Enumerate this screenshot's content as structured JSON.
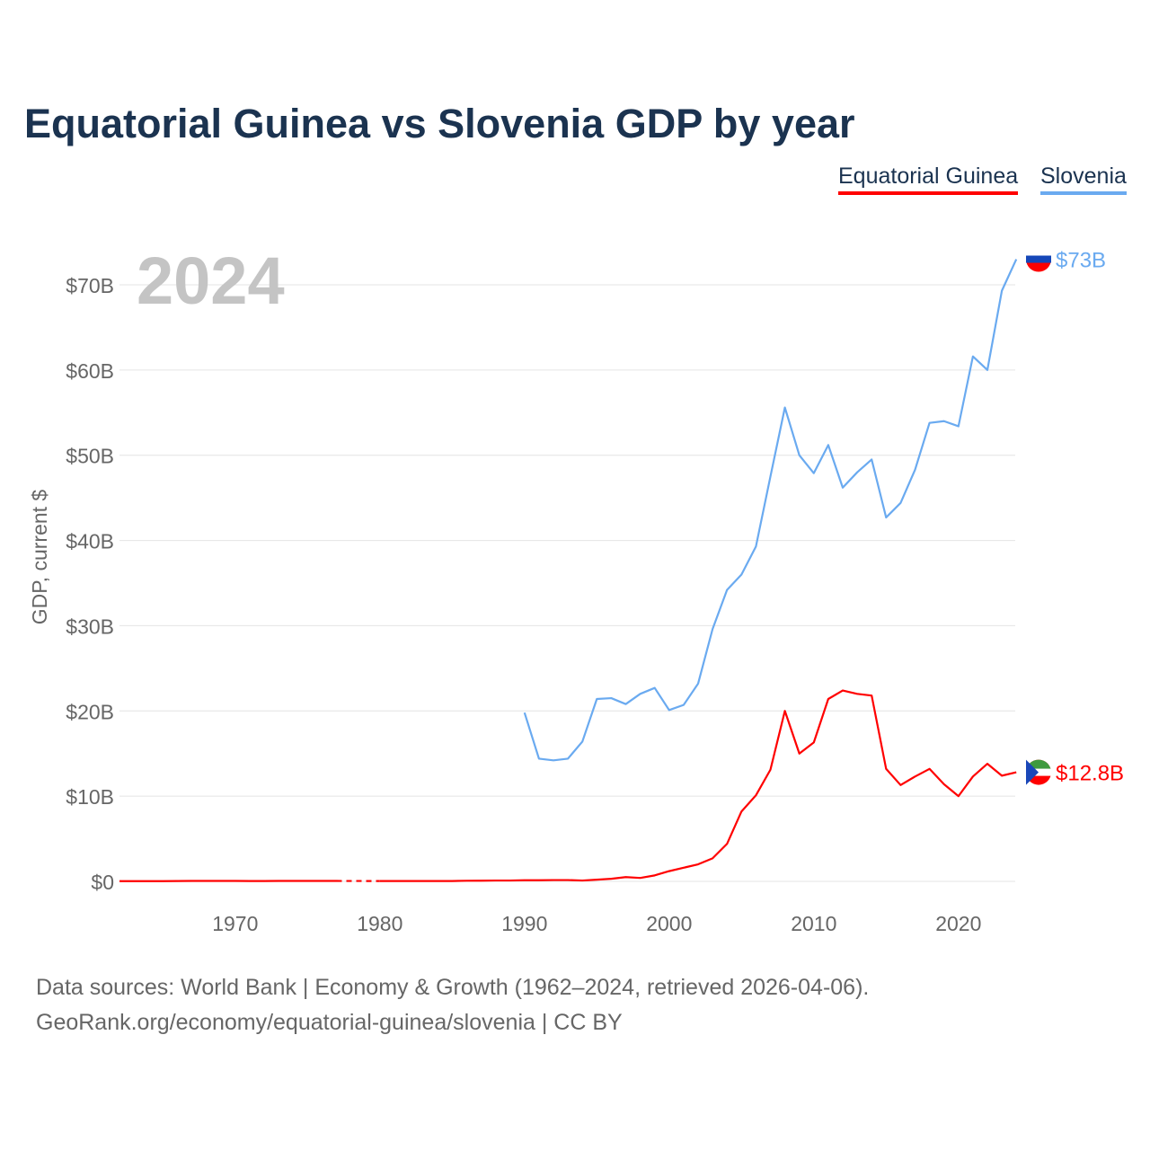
{
  "title": "Equatorial Guinea vs Slovenia GDP by year",
  "legend": [
    "Equatorial Guinea",
    "Slovenia"
  ],
  "source_line1": "Data sources: World Bank | Economy & Growth (1962–2024, retrieved 2026-04-06).",
  "source_line2": "GeoRank.org/economy/equatorial-guinea/slovenia | CC BY",
  "chart_data": {
    "type": "line",
    "title": "Equatorial Guinea vs Slovenia GDP by year",
    "year_label": "2024",
    "ylabel": "GDP, current $",
    "xlim": [
      1962,
      2024
    ],
    "ylim": [
      0,
      75
    ],
    "x_ticks": [
      1970,
      1980,
      1990,
      2000,
      2010,
      2020
    ],
    "y_ticks": [
      0,
      10,
      20,
      30,
      40,
      50,
      60,
      70
    ],
    "y_tick_labels": [
      "$0",
      "$10B",
      "$20B",
      "$30B",
      "$40B",
      "$50B",
      "$60B",
      "$70B"
    ],
    "grid": true,
    "legend_position": "top-right",
    "series": [
      {
        "name": "Equatorial Guinea",
        "color": "#ff0000",
        "end_label": "$12.8B",
        "start": 1962,
        "values": [
          0.03,
          0.03,
          0.03,
          0.03,
          0.04,
          0.05,
          0.05,
          0.05,
          0.05,
          0.04,
          0.04,
          0.05,
          0.05,
          0.05,
          0.05,
          0.05,
          null,
          null,
          0.04,
          0.04,
          0.04,
          0.04,
          0.04,
          0.04,
          0.07,
          0.08,
          0.1,
          0.1,
          0.13,
          0.13,
          0.15,
          0.15,
          0.1,
          0.2,
          0.3,
          0.5,
          0.4,
          0.7,
          1.2,
          1.6,
          2.0,
          2.7,
          4.4,
          8.2,
          10.1,
          13.1,
          20.0,
          15.0,
          16.3,
          21.4,
          22.4,
          22.0,
          21.8,
          13.2,
          11.3,
          12.3,
          13.2,
          11.4,
          10.0,
          12.3,
          13.8,
          12.4,
          12.8
        ]
      },
      {
        "name": "Slovenia",
        "color": "#6aaaf0",
        "end_label": "$73B",
        "start": 1990,
        "values": [
          19.8,
          14.4,
          14.2,
          14.4,
          16.4,
          21.4,
          21.5,
          20.8,
          22.0,
          22.7,
          20.1,
          20.7,
          23.2,
          29.6,
          34.2,
          36.0,
          39.3,
          47.5,
          55.6,
          50.0,
          47.9,
          51.2,
          46.2,
          48.0,
          49.5,
          42.7,
          44.4,
          48.3,
          53.8,
          54.0,
          53.4,
          61.6,
          60.0,
          69.3,
          73.0
        ]
      }
    ]
  }
}
